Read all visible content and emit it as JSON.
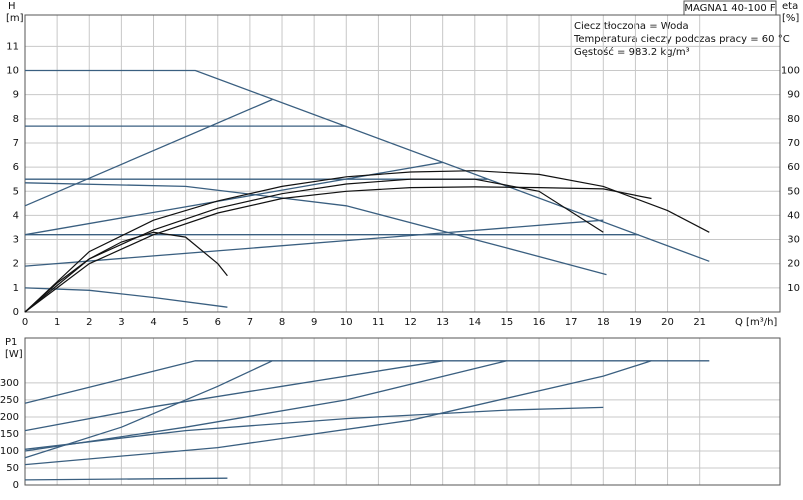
{
  "chart_data": [
    {
      "type": "line",
      "ylabel": [
        "H",
        "[m]"
      ],
      "y2label": [
        "eta",
        "[%]"
      ],
      "xlabel": "Q [m³/h]",
      "model": "MAGNA1 40-100 F",
      "annotations": [
        "Ciecz tłoczona = Woda",
        "Temperatura cieczy podczas pracy = 60 °C",
        "Gęstość = 983.2 kg/m³"
      ],
      "xlim": [
        0,
        23.5
      ],
      "xticks": [
        0,
        1,
        2,
        3,
        4,
        5,
        6,
        7,
        8,
        9,
        10,
        11,
        12,
        13,
        14,
        15,
        16,
        17,
        18,
        19,
        20,
        21
      ],
      "ylim": [
        0,
        12.3
      ],
      "yticks": [
        0,
        1,
        2,
        3,
        4,
        5,
        6,
        7,
        8,
        9,
        10,
        11
      ],
      "y2lim": [
        0,
        123
      ],
      "y2ticks": [
        10,
        20,
        30,
        40,
        50,
        60,
        70,
        80,
        90,
        100
      ],
      "grid": true,
      "series": [
        {
          "color": "#3a5f80",
          "x": [
            0,
            5.3,
            21.3
          ],
          "values": [
            10,
            10,
            2.1
          ]
        },
        {
          "color": "#3a5f80",
          "x": [
            0,
            10
          ],
          "values": [
            7.7,
            7.7
          ]
        },
        {
          "color": "#3a5f80",
          "x": [
            0,
            14.4
          ],
          "values": [
            5.5,
            5.5
          ]
        },
        {
          "color": "#3a5f80",
          "x": [
            0,
            19.1
          ],
          "values": [
            3.2,
            3.2
          ]
        },
        {
          "color": "#3a5f80",
          "x": [
            0,
            7.7
          ],
          "values": [
            4.4,
            8.8
          ]
        },
        {
          "color": "#3a5f80",
          "x": [
            0,
            13
          ],
          "values": [
            3.2,
            6.2
          ]
        },
        {
          "color": "#3a5f80",
          "x": [
            0,
            18
          ],
          "values": [
            1.9,
            3.8
          ]
        },
        {
          "color": "#3a5f80",
          "x": [
            0,
            5,
            10,
            15,
            18.1
          ],
          "values": [
            5.35,
            5.2,
            4.4,
            2.65,
            1.55
          ]
        },
        {
          "color": "#3a5f80",
          "x": [
            0,
            2,
            4,
            6.3
          ],
          "values": [
            1,
            0.9,
            0.6,
            0.2
          ]
        },
        {
          "color": "#111111",
          "axis": "y2",
          "x": [
            0,
            2,
            4,
            6,
            8,
            10,
            12,
            14,
            16,
            18,
            20,
            21.3
          ],
          "values": [
            0,
            25,
            38,
            46,
            52,
            56,
            58,
            58.5,
            57,
            52,
            42,
            33
          ]
        },
        {
          "color": "#111111",
          "axis": "y2",
          "x": [
            0,
            2,
            4,
            6,
            8,
            10,
            12,
            14,
            16,
            18
          ],
          "values": [
            0,
            22,
            34,
            43,
            49,
            53,
            55,
            55,
            50,
            33
          ]
        },
        {
          "color": "#111111",
          "axis": "y2",
          "x": [
            0,
            2,
            4,
            6,
            8,
            10,
            12,
            14,
            16,
            18,
            19.5
          ],
          "values": [
            0,
            20,
            32,
            41,
            47,
            50,
            51.5,
            51.8,
            51.5,
            51,
            47
          ]
        },
        {
          "color": "#111111",
          "axis": "y2",
          "x": [
            0,
            1,
            2,
            3,
            4,
            5,
            6,
            6.3
          ],
          "values": [
            0,
            12,
            22,
            29,
            33,
            31,
            20,
            15
          ]
        }
      ]
    },
    {
      "type": "line",
      "ylabel": [
        "P1",
        "[W]"
      ],
      "xlim": [
        0,
        23.5
      ],
      "xticks": [
        0,
        1,
        2,
        3,
        4,
        5,
        6,
        7,
        8,
        9,
        10,
        11,
        12,
        13,
        14,
        15,
        16,
        17,
        18,
        19,
        20,
        21
      ],
      "ylim": [
        0,
        432
      ],
      "yticks": [
        0,
        50,
        100,
        150,
        200,
        250,
        300
      ],
      "grid": true,
      "series": [
        {
          "color": "#3a5f80",
          "x": [
            0,
            5.3,
            21.3
          ],
          "values": [
            240,
            365,
            365
          ]
        },
        {
          "color": "#3a5f80",
          "x": [
            0,
            4,
            8,
            13
          ],
          "values": [
            160,
            230,
            290,
            365
          ]
        },
        {
          "color": "#3a5f80",
          "x": [
            0,
            5,
            10,
            15
          ],
          "values": [
            100,
            170,
            250,
            365
          ]
        },
        {
          "color": "#3a5f80",
          "x": [
            0,
            6,
            12,
            18,
            19.5
          ],
          "values": [
            60,
            110,
            190,
            320,
            365
          ]
        },
        {
          "color": "#3a5f80",
          "x": [
            0,
            5,
            10,
            15,
            18
          ],
          "values": [
            105,
            160,
            195,
            220,
            228
          ]
        },
        {
          "color": "#3a5f80",
          "x": [
            0,
            3,
            6,
            7.7
          ],
          "values": [
            80,
            170,
            290,
            365
          ]
        },
        {
          "color": "#3a5f80",
          "x": [
            0,
            6.3
          ],
          "values": [
            15,
            20
          ]
        }
      ]
    }
  ]
}
